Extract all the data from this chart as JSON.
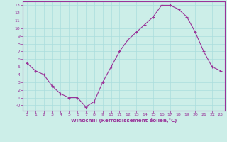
{
  "x": [
    0,
    1,
    2,
    3,
    4,
    5,
    6,
    7,
    8,
    9,
    10,
    11,
    12,
    13,
    14,
    15,
    16,
    17,
    18,
    19,
    20,
    21,
    22,
    23
  ],
  "y": [
    5.5,
    4.5,
    4.0,
    2.5,
    1.5,
    1.0,
    1.0,
    -0.2,
    0.5,
    3.0,
    5.0,
    7.0,
    8.5,
    9.5,
    10.5,
    11.5,
    13.0,
    13.0,
    12.5,
    11.5,
    9.5,
    7.0,
    5.0,
    4.5
  ],
  "line_color": "#993399",
  "marker": "+",
  "bg_color": "#cceee8",
  "grid_color": "#aadddd",
  "axis_color": "#993399",
  "xlabel": "Windchill (Refroidissement éolien,°C)",
  "xlabel_color": "#993399",
  "tick_color": "#993399",
  "ylim": [
    -0.7,
    13.5
  ],
  "xlim": [
    -0.5,
    23.5
  ],
  "yticks": [
    0,
    1,
    2,
    3,
    4,
    5,
    6,
    7,
    8,
    9,
    10,
    11,
    12,
    13
  ],
  "xticks": [
    0,
    1,
    2,
    3,
    4,
    5,
    6,
    7,
    8,
    9,
    10,
    11,
    12,
    13,
    14,
    15,
    16,
    17,
    18,
    19,
    20,
    21,
    22,
    23
  ]
}
